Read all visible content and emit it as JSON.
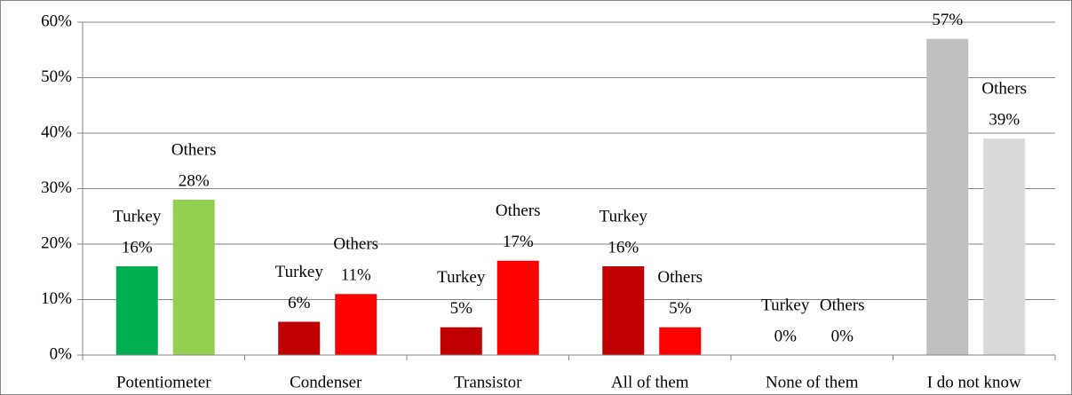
{
  "chart_data": {
    "type": "bar",
    "categories": [
      "Potentiometer",
      "Condenser",
      "Transistor",
      "All of them",
      "None of them",
      "I do not know"
    ],
    "series": [
      {
        "name": "Turkey",
        "colors": [
          "#00b050",
          "#c00000",
          "#c00000",
          "#c00000",
          "#c00000",
          "#bfbfbf"
        ],
        "values": [
          16,
          6,
          5,
          16,
          0,
          57
        ],
        "value_labels": [
          "16%",
          "6%",
          "5%",
          "16%",
          "0%",
          "57%"
        ]
      },
      {
        "name": "Others",
        "colors": [
          "#92d050",
          "#ff0000",
          "#ff0000",
          "#ff0000",
          "#ff0000",
          "#d9d9d9"
        ],
        "values": [
          28,
          11,
          17,
          5,
          0,
          39
        ],
        "value_labels": [
          "28%",
          "11%",
          "17%",
          "5%",
          "0%",
          "39%"
        ]
      }
    ],
    "ylim": [
      0,
      60
    ],
    "yticks": [
      {
        "value": 0,
        "label": "0%"
      },
      {
        "value": 10,
        "label": "10%"
      },
      {
        "value": 20,
        "label": "20%"
      },
      {
        "value": 30,
        "label": "30%"
      },
      {
        "value": 40,
        "label": "40%"
      },
      {
        "value": 50,
        "label": "50%"
      },
      {
        "value": 60,
        "label": "60%"
      }
    ],
    "grid": true
  }
}
